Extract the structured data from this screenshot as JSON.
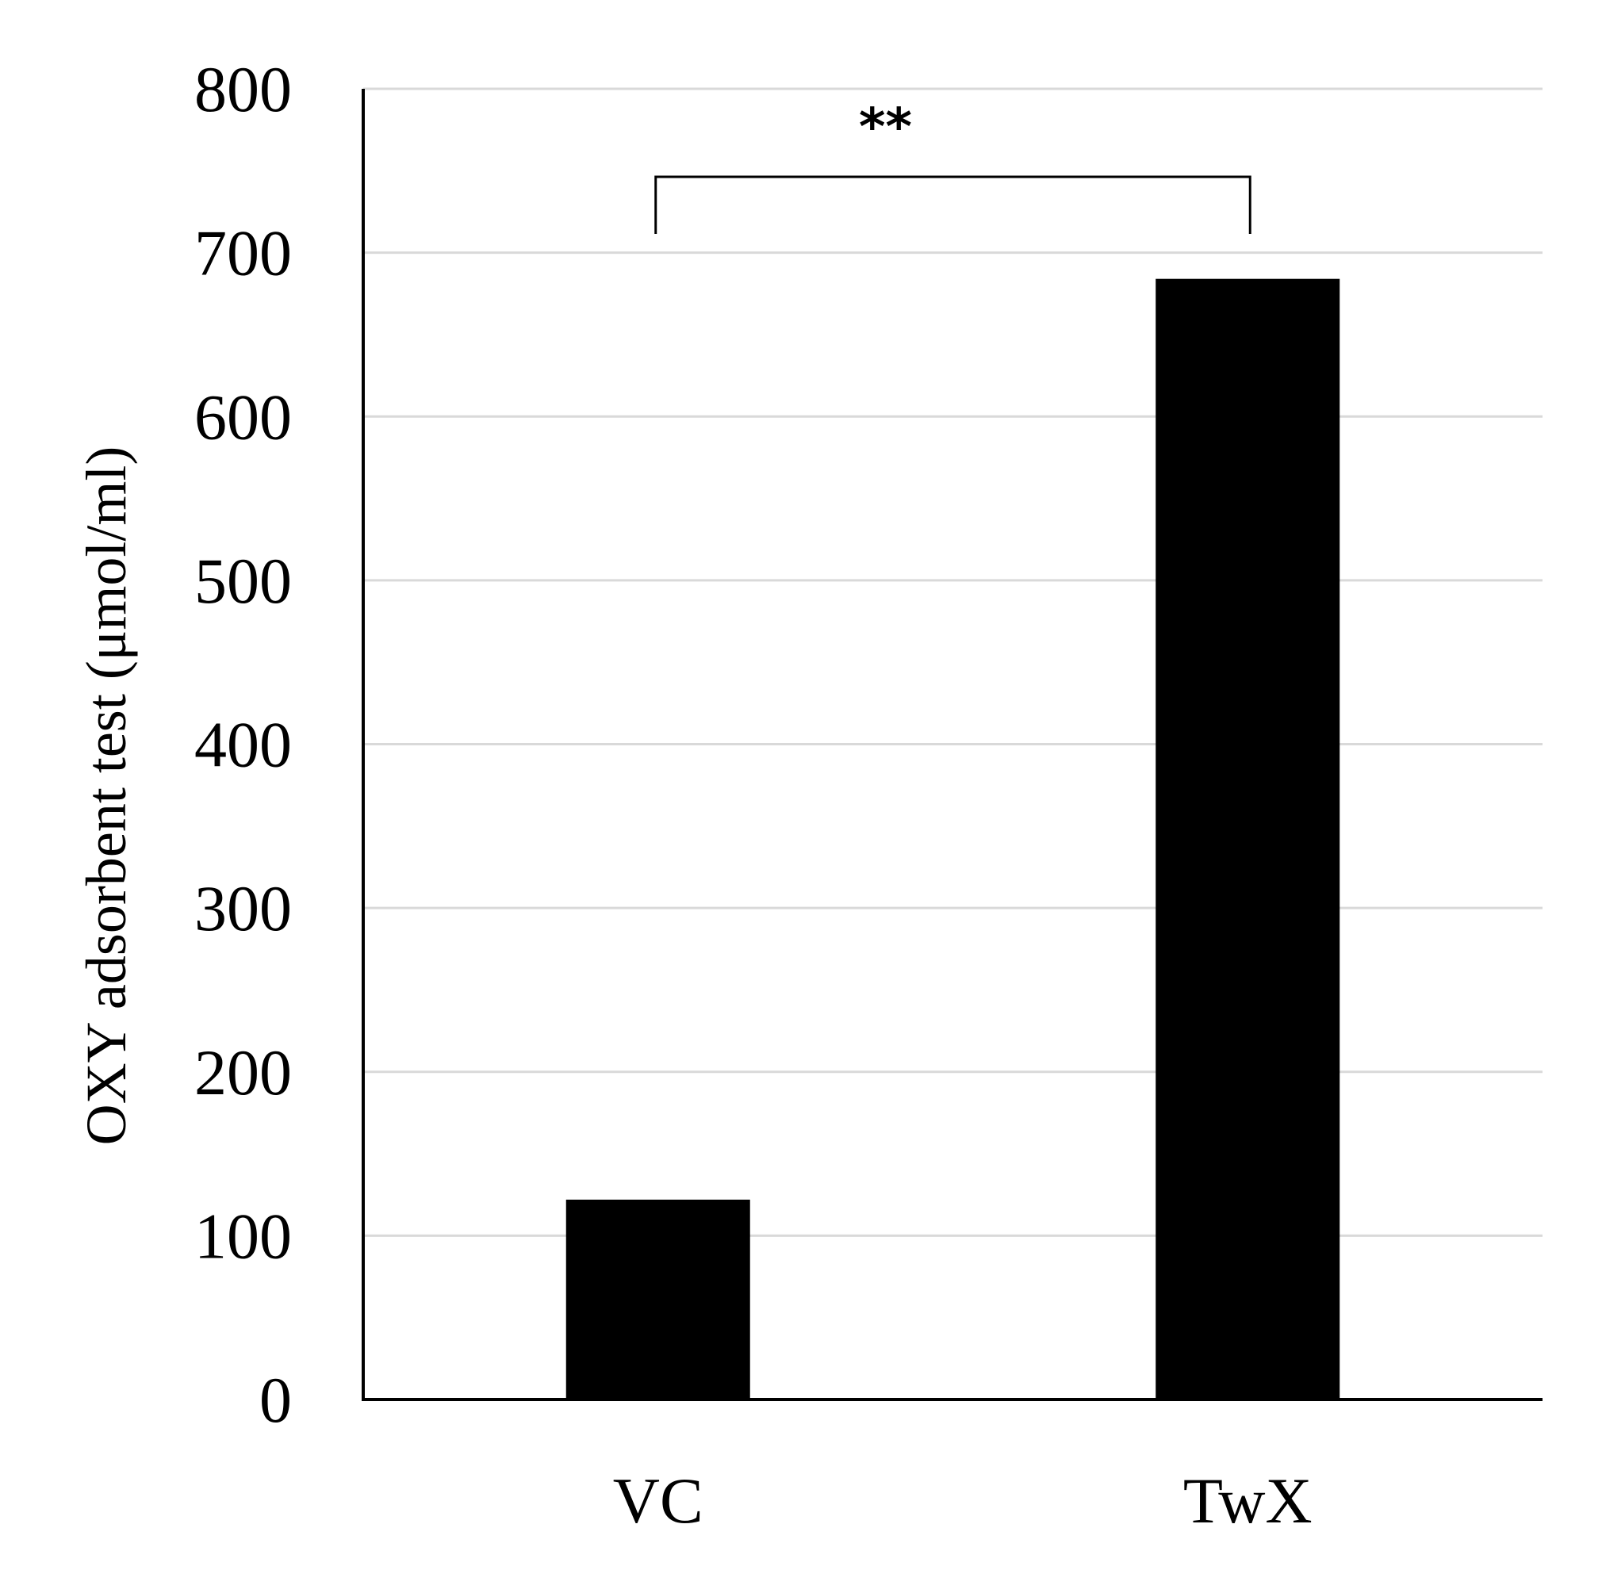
{
  "chart_data": {
    "type": "bar",
    "categories": [
      "VC",
      "TwX"
    ],
    "values": [
      122,
      684
    ],
    "title": "",
    "xlabel": "",
    "ylabel": "OXY adsorbent test  (μmol/ml)",
    "ylim": [
      0,
      800
    ],
    "yticks": [
      0,
      100,
      200,
      300,
      400,
      500,
      600,
      700,
      800
    ],
    "grid": true,
    "legend": "none",
    "significance": {
      "label": "**",
      "between": [
        "VC",
        "TwX"
      ]
    },
    "colors": {
      "bar": "#000000",
      "grid": "#d9d9d9",
      "axis": "#000000"
    }
  }
}
